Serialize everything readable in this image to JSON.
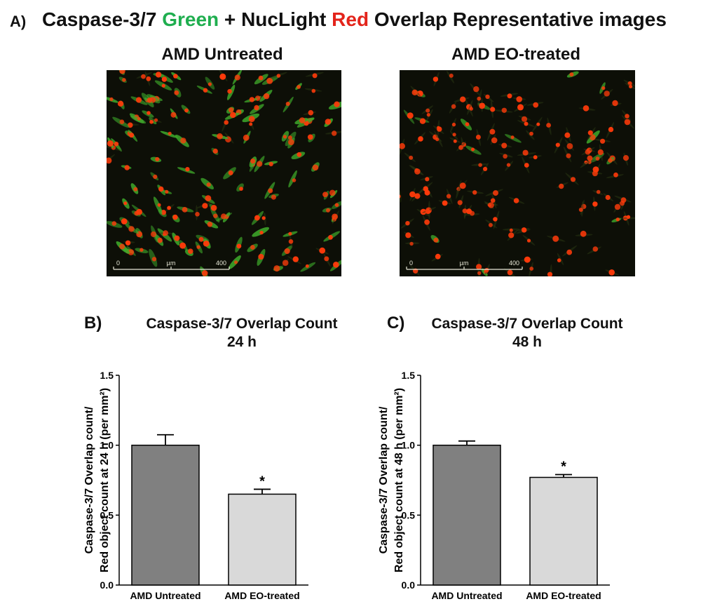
{
  "panel_a": {
    "label": "A)",
    "title_parts": [
      {
        "text": "Caspase-3/7 ",
        "color": "#111111"
      },
      {
        "text": "Green",
        "color": "#1fae4f"
      },
      {
        "text": " + NucLight ",
        "color": "#111111"
      },
      {
        "text": "Red",
        "color": "#e3241b"
      },
      {
        "text": " Overlap Representative images",
        "color": "#111111"
      }
    ],
    "images": [
      {
        "title": "AMD Untreated",
        "scale_start": "0",
        "scale_unit": "µm",
        "scale_end": "400",
        "description_icon": "microscopy-image-untreated"
      },
      {
        "title": "AMD EO-treated",
        "scale_start": "0",
        "scale_unit": "µm",
        "scale_end": "400",
        "description_icon": "microscopy-image-eo-treated"
      }
    ]
  },
  "colors": {
    "bar_untreated": "#808080",
    "bar_treated": "#d9d9d9",
    "nuclei": "#ff3a0a",
    "cytoplasm": "#3ea82a"
  },
  "chart_data": [
    {
      "panel_label": "B)",
      "type": "bar",
      "title": "Caspase-3/7 Overlap Count",
      "subtitle": "24 h",
      "ylabel_line1": "Caspase-3/7 Overlap count/",
      "ylabel_line2": "Red object count at 24 h (per mm²)",
      "categories": [
        "AMD Untreated",
        "AMD EO-treated"
      ],
      "values": [
        1.0,
        0.65
      ],
      "errors": [
        0.075,
        0.035
      ],
      "significance": [
        "",
        "*"
      ],
      "ylim": [
        0.0,
        1.5
      ],
      "yticks": [
        "0.0",
        "0.5",
        "1.0",
        "1.5"
      ]
    },
    {
      "panel_label": "C)",
      "type": "bar",
      "title": "Caspase-3/7 Overlap Count",
      "subtitle": "48 h",
      "ylabel_line1": "Caspase-3/7 Overlap count/",
      "ylabel_line2": "Red object count at 48 h (per mm²)",
      "categories": [
        "AMD Untreated",
        "AMD EO-treated"
      ],
      "values": [
        1.0,
        0.77
      ],
      "errors": [
        0.03,
        0.02
      ],
      "significance": [
        "",
        "*"
      ],
      "ylim": [
        0.0,
        1.5
      ],
      "yticks": [
        "0.0",
        "0.5",
        "1.0",
        "1.5"
      ]
    }
  ]
}
